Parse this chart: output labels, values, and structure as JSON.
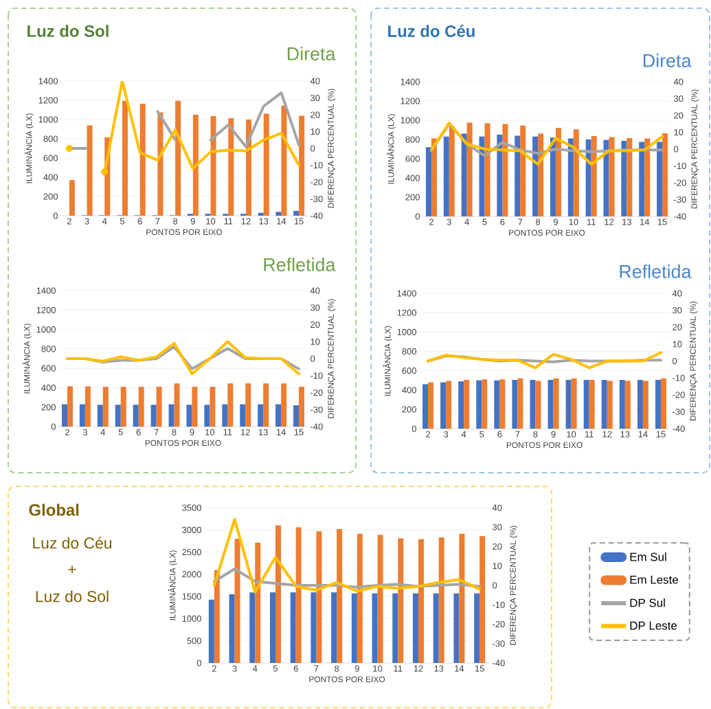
{
  "chart_data": [
    {
      "type": "bar",
      "title": "Luz do Sol",
      "subtitle": "Direta",
      "xlabel": "PONTOS POR EIXO",
      "ylabel": "ILUMINÂNCIA (LX)",
      "y2label": "DIFERENÇA PERCENTUAL (%)",
      "categories": [
        "2",
        "3",
        "4",
        "5",
        "6",
        "7",
        "8",
        "9",
        "10",
        "11",
        "12",
        "13",
        "14",
        "15"
      ],
      "series": [
        {
          "type": "bar",
          "color": "#4472c4",
          "values": [
            0,
            5,
            5,
            5,
            5,
            5,
            5,
            20,
            20,
            20,
            20,
            30,
            40,
            50
          ]
        },
        {
          "type": "bar",
          "color": "#ed7d31",
          "values": [
            370,
            940,
            815,
            1195,
            1165,
            1075,
            1195,
            1050,
            1035,
            1015,
            1000,
            1060,
            1145,
            1040
          ]
        },
        {
          "type": "line",
          "axis": "y2",
          "color": "#a5a5a5",
          "values": [
            0,
            0,
            null,
            null,
            null,
            22,
            5,
            null,
            5,
            14,
            1,
            25,
            33,
            2
          ]
        },
        {
          "type": "line",
          "axis": "y2",
          "color": "#ffc000",
          "values": [
            0,
            null,
            -14,
            40,
            -2.5,
            -7,
            11,
            -12,
            -2,
            -1,
            -1.5,
            5,
            9,
            -10
          ]
        }
      ],
      "ylim": [
        0,
        1400
      ],
      "yticks": [
        0,
        200,
        400,
        600,
        800,
        1000,
        1200,
        1400
      ],
      "y2lim": [
        -40,
        40
      ],
      "y2ticks": [
        -40,
        -30,
        -20,
        -10,
        0,
        10,
        20,
        30,
        40
      ],
      "grid": "y"
    },
    {
      "type": "bar",
      "title": "Luz do Céu",
      "subtitle": "Direta",
      "xlabel": "PONTOS POR EIXO",
      "ylabel": "ILUMINÂNCIA (LX)",
      "y2label": "DIFERENÇA PERCENTUAL (%)",
      "categories": [
        "2",
        "3",
        "4",
        "5",
        "6",
        "7",
        "8",
        "9",
        "10",
        "11",
        "12",
        "13",
        "14",
        "15"
      ],
      "series": [
        {
          "type": "bar",
          "color": "#4472c4",
          "values": [
            720,
            830,
            860,
            830,
            850,
            840,
            830,
            820,
            810,
            800,
            795,
            785,
            775,
            775
          ]
        },
        {
          "type": "bar",
          "color": "#ed7d31",
          "values": [
            810,
            940,
            975,
            970,
            960,
            945,
            860,
            920,
            905,
            835,
            825,
            815,
            810,
            865
          ]
        },
        {
          "type": "line",
          "axis": "y2",
          "color": "#a5a5a5",
          "values": [
            -1,
            15,
            3,
            -4,
            4,
            -0.5,
            -2.5,
            0,
            -1,
            -1.5,
            -1,
            -0.5,
            -0.5,
            -0.5
          ]
        },
        {
          "type": "line",
          "axis": "y2",
          "color": "#ffc000",
          "values": [
            -0.5,
            15.5,
            3,
            0,
            -0.5,
            -1,
            -9,
            6.5,
            1,
            -9,
            -1,
            -1,
            -0.5,
            7.5
          ]
        }
      ],
      "ylim": [
        0,
        1400
      ],
      "yticks": [
        0,
        200,
        400,
        600,
        800,
        1000,
        1200,
        1400
      ],
      "y2lim": [
        -40,
        40
      ],
      "y2ticks": [
        -40,
        -30,
        -20,
        -10,
        0,
        10,
        20,
        30,
        40
      ],
      "grid": "y"
    },
    {
      "type": "bar",
      "subtitle": "Refletida",
      "xlabel": "PONTOS POR EIXO",
      "ylabel": "ILUMINÂNCIA (LX)",
      "y2label": "DIFERENÇA PERCENTUAL (%)",
      "categories": [
        "2",
        "3",
        "4",
        "5",
        "6",
        "7",
        "8",
        "9",
        "10",
        "11",
        "12",
        "13",
        "14",
        "15"
      ],
      "series": [
        {
          "type": "bar",
          "color": "#4472c4",
          "values": [
            230,
            230,
            225,
            225,
            225,
            225,
            230,
            225,
            225,
            230,
            230,
            230,
            230,
            220
          ]
        },
        {
          "type": "bar",
          "color": "#ed7d31",
          "values": [
            415,
            415,
            410,
            410,
            410,
            410,
            445,
            410,
            410,
            445,
            445,
            445,
            445,
            410
          ]
        },
        {
          "type": "line",
          "axis": "y2",
          "color": "#a5a5a5",
          "values": [
            0,
            0,
            -2,
            -1,
            -1,
            0,
            7,
            -6,
            0,
            6,
            0,
            0,
            0,
            -6
          ]
        },
        {
          "type": "line",
          "axis": "y2",
          "color": "#ffc000",
          "values": [
            0,
            0,
            -1.5,
            1,
            -1,
            1,
            9,
            -9,
            0,
            10,
            0.5,
            0,
            0,
            -9
          ]
        }
      ],
      "ylim": [
        0,
        1400
      ],
      "yticks": [
        0,
        200,
        400,
        600,
        800,
        1000,
        1200,
        1400
      ],
      "y2lim": [
        -40,
        40
      ],
      "y2ticks": [
        -40,
        -30,
        -20,
        -10,
        0,
        10,
        20,
        30,
        40
      ],
      "grid": "y"
    },
    {
      "type": "bar",
      "subtitle": "Refletida",
      "xlabel": "PONTOS POR EIXO",
      "ylabel": "ILUMINÂNCIA (LX)",
      "y2label": "DIFERENÇA PERCENTUAL (%)",
      "categories": [
        "2",
        "3",
        "4",
        "5",
        "6",
        "7",
        "8",
        "9",
        "10",
        "11",
        "12",
        "13",
        "14",
        "15"
      ],
      "series": [
        {
          "type": "bar",
          "color": "#4472c4",
          "values": [
            460,
            480,
            490,
            500,
            500,
            505,
            505,
            505,
            505,
            505,
            505,
            505,
            505,
            505
          ]
        },
        {
          "type": "bar",
          "color": "#ed7d31",
          "values": [
            480,
            495,
            505,
            510,
            510,
            520,
            495,
            520,
            520,
            505,
            495,
            495,
            495,
            520
          ]
        },
        {
          "type": "line",
          "axis": "y2",
          "color": "#a5a5a5",
          "values": [
            0,
            3,
            2.5,
            1,
            0,
            0.5,
            0,
            -0.5,
            0.5,
            0,
            0,
            0,
            0.5,
            0.5
          ]
        },
        {
          "type": "line",
          "axis": "y2",
          "color": "#ffc000",
          "values": [
            0,
            3.5,
            2,
            1,
            0.5,
            0.5,
            -4,
            4,
            1,
            -4,
            0,
            0,
            0,
            5
          ]
        }
      ],
      "ylim": [
        0,
        1400
      ],
      "yticks": [
        0,
        200,
        400,
        600,
        800,
        1000,
        1200,
        1400
      ],
      "y2lim": [
        -40,
        40
      ],
      "y2ticks": [
        -40,
        -30,
        -20,
        -10,
        0,
        10,
        20,
        30,
        40
      ],
      "grid": "y"
    },
    {
      "type": "bar",
      "annotations": [
        "Global",
        "Luz do Céu",
        "+",
        "Luz do Sol"
      ],
      "xlabel": "PONTOS POR EIXO",
      "ylabel": "ILUMINÂNCIA (LX)",
      "y2label": "DIFERENÇA PERCENTUAL (%)",
      "categories": [
        "2",
        "3",
        "4",
        "5",
        "6",
        "7",
        "8",
        "9",
        "10",
        "11",
        "12",
        "13",
        "14",
        "15"
      ],
      "series": [
        {
          "name": "Em Sul",
          "type": "bar",
          "color": "#4472c4",
          "values": [
            1430,
            1550,
            1590,
            1590,
            1590,
            1590,
            1590,
            1570,
            1570,
            1570,
            1570,
            1570,
            1570,
            1570
          ]
        },
        {
          "name": "Em Leste",
          "type": "bar",
          "color": "#ed7d31",
          "values": [
            2090,
            2800,
            2710,
            3100,
            3060,
            2970,
            3020,
            2910,
            2890,
            2810,
            2790,
            2830,
            2910,
            2860
          ]
        },
        {
          "name": "DP Sul",
          "type": "line",
          "axis": "y2",
          "color": "#a5a5a5",
          "values": [
            2,
            8.5,
            2,
            1,
            0,
            0,
            0,
            -1,
            0,
            0.5,
            -0.5,
            0,
            0.5,
            -0.5
          ]
        },
        {
          "name": "DP Leste",
          "type": "line",
          "axis": "y2",
          "color": "#ffc000",
          "values": [
            0,
            34,
            -3.5,
            14.5,
            -0.5,
            -2.5,
            1.5,
            -3,
            -0.5,
            -1.5,
            -0.5,
            1.5,
            3,
            -2
          ]
        }
      ],
      "ylim": [
        0,
        3500
      ],
      "yticks": [
        0,
        500,
        1000,
        1500,
        2000,
        2500,
        3000,
        3500
      ],
      "y2lim": [
        -40,
        40
      ],
      "y2ticks": [
        -40,
        -30,
        -20,
        -10,
        0,
        10,
        20,
        30,
        40
      ],
      "grid": "y",
      "legend": "right"
    }
  ]
}
